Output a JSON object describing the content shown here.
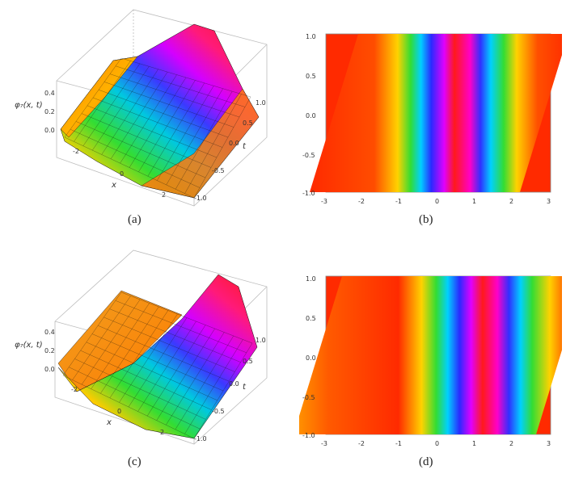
{
  "figure": {
    "captions": [
      "(a)",
      "(b)",
      "(c)",
      "(d)"
    ]
  },
  "panels": [
    {
      "id": "a",
      "kind": "surface3d",
      "z_label": "φ₇(x, t)",
      "x_label": "x",
      "t_label": "t",
      "z_ticks": [
        "0.4",
        "0.2",
        "0.0"
      ],
      "x_ticks": [
        "-2",
        "0",
        "2"
      ],
      "t_ticks": [
        "1.0",
        "0.5",
        "0.0",
        "-0.5",
        "-1.0"
      ]
    },
    {
      "id": "b",
      "kind": "density",
      "x_ticks": [
        "-3",
        "-2",
        "-1",
        "0",
        "1",
        "2",
        "3"
      ],
      "y_ticks": [
        "1.0",
        "0.5",
        "0.0",
        "-0.5",
        "-1.0"
      ]
    },
    {
      "id": "c",
      "kind": "surface3d",
      "z_label": "φ₇(x, t)",
      "x_label": "x",
      "t_label": "t",
      "z_ticks": [
        "0.4",
        "0.2",
        "0.0"
      ],
      "x_ticks": [
        "-2",
        "0",
        "2"
      ],
      "t_ticks": [
        "1.0",
        "0.5",
        "0.0",
        "-0.5",
        "-1.0"
      ]
    },
    {
      "id": "d",
      "kind": "density",
      "x_ticks": [
        "-3",
        "-2",
        "-1",
        "0",
        "1",
        "2",
        "3"
      ],
      "y_ticks": [
        "1.0",
        "0.5",
        "0.0",
        "-0.5",
        "-1.0"
      ]
    }
  ],
  "chart_data": [
    {
      "type": "surface",
      "title": "",
      "zlabel": "φ₇(x, t)",
      "xlabel": "x",
      "ylabel": "t",
      "xlim": [
        -3,
        3
      ],
      "ylim": [
        -1,
        1
      ],
      "zlim": [
        0,
        0.4
      ],
      "shape": "traveling double-hump wave; amplitude ~0.45, centered near x=0, drifting with t"
    },
    {
      "type": "heatmap",
      "title": "",
      "xlim": [
        -3,
        3
      ],
      "ylim": [
        -1,
        1
      ],
      "xticks": [
        -3,
        -2,
        -1,
        0,
        1,
        2,
        3
      ],
      "yticks": [
        -1.0,
        -0.5,
        0.0,
        0.5,
        1.0
      ],
      "color_scale": "rainbow (red low / magenta high)"
    },
    {
      "type": "surface",
      "title": "",
      "zlabel": "φ₇(x, t)",
      "xlabel": "x",
      "ylabel": "t",
      "xlim": [
        -3,
        3
      ],
      "ylim": [
        -1,
        1
      ],
      "zlim": [
        0,
        0.4
      ],
      "shape": "traveling wave; amplitude ~0.45, drifting with t"
    },
    {
      "type": "heatmap",
      "title": "",
      "xlim": [
        -3,
        3
      ],
      "ylim": [
        -1,
        1
      ],
      "xticks": [
        -3,
        -2,
        -1,
        0,
        1,
        2,
        3
      ],
      "yticks": [
        -1.0,
        -0.5,
        0.0,
        0.5,
        1.0
      ],
      "color_scale": "rainbow (red low / magenta high)"
    }
  ]
}
